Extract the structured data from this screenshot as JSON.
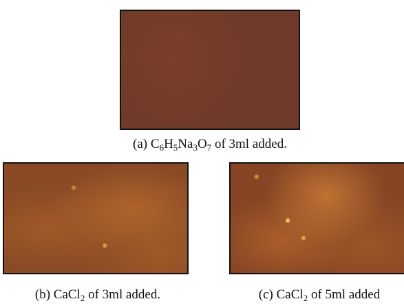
{
  "figures": [
    {
      "caption": [
        {
          "text": "(a) C"
        },
        {
          "text": "6",
          "sub": true
        },
        {
          "text": "H"
        },
        {
          "text": "5",
          "sub": true
        },
        {
          "text": "Na"
        },
        {
          "text": "3",
          "sub": true
        },
        {
          "text": "O"
        },
        {
          "text": "7",
          "sub": true
        },
        {
          "text": " of 3ml added."
        }
      ]
    },
    {
      "caption": [
        {
          "text": "(b) CaCl"
        },
        {
          "text": "2",
          "sub": true
        },
        {
          "text": " of 3ml added."
        }
      ]
    },
    {
      "caption": [
        {
          "text": "(c) CaCl"
        },
        {
          "text": "2",
          "sub": true
        },
        {
          "text": " of 5ml added"
        }
      ]
    }
  ]
}
